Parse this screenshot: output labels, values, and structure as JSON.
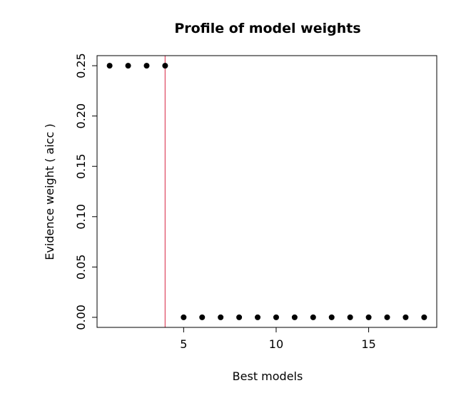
{
  "chart_data": {
    "type": "scatter",
    "title": "Profile of model weights",
    "xlabel": "Best models",
    "ylabel": "Evidence weight ( aicc )",
    "xlim": [
      0.32,
      18.68
    ],
    "ylim": [
      -0.01,
      0.26
    ],
    "x_ticks": [
      5,
      10,
      15
    ],
    "x_tick_labels": [
      "5",
      "10",
      "15"
    ],
    "y_ticks": [
      0,
      0.05,
      0.1,
      0.15,
      0.2,
      0.25
    ],
    "y_tick_labels": [
      "0.00",
      "0.05",
      "0.10",
      "0.15",
      "0.20",
      "0.25"
    ],
    "grid": false,
    "points": {
      "x": [
        1,
        2,
        3,
        4,
        5,
        6,
        7,
        8,
        9,
        10,
        11,
        12,
        13,
        14,
        15,
        16,
        17,
        18
      ],
      "y": [
        0.25,
        0.25,
        0.25,
        0.25,
        0,
        0,
        0,
        0,
        0,
        0,
        0,
        0,
        0,
        0,
        0,
        0,
        0,
        0
      ]
    },
    "vline": {
      "x": 4,
      "color": "#df536b"
    },
    "point_color": "#000000"
  }
}
